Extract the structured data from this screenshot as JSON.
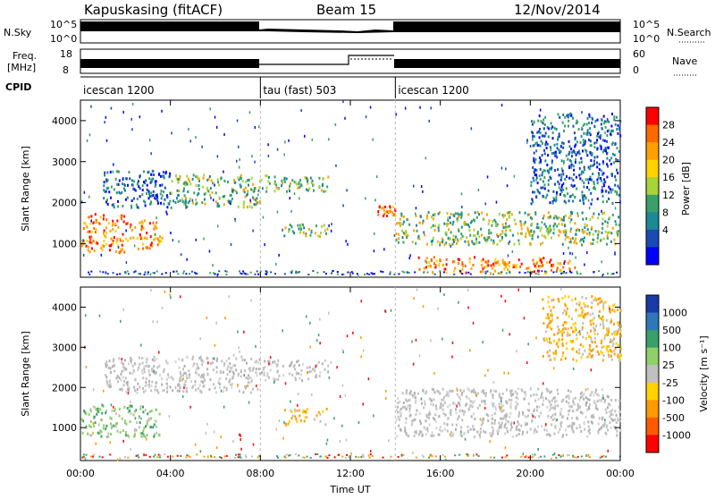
{
  "header": {
    "station": "Kapuskasing (fitACF)",
    "beam": "Beam 15",
    "date": "12/Nov/2014"
  },
  "noise_panel": {
    "left_label": "N.Sky",
    "left_ticks": [
      "10^5",
      "10^0"
    ],
    "right_label": "N.Search",
    "right_ticks": [
      "10^5",
      "10^0"
    ]
  },
  "freq_panel": {
    "left_label_1": "Freq.",
    "left_label_2": "[MHz]",
    "left_ticks": [
      "18",
      "8"
    ],
    "right_label": "Nave",
    "right_ticks": [
      "60",
      "0"
    ]
  },
  "cpid": {
    "label": "CPID",
    "segments": [
      {
        "name": "icescan 1200",
        "start_hour": 0,
        "end_hour": 8
      },
      {
        "name": "tau (fast) 503",
        "start_hour": 8,
        "end_hour": 14
      },
      {
        "name": "icescan 1200",
        "start_hour": 14,
        "end_hour": 24
      }
    ]
  },
  "chart_data": [
    {
      "type": "heatmap",
      "parameter": "Power",
      "xlabel": "",
      "ylabel": "Slant Range [km]",
      "xlim": [
        0,
        24
      ],
      "ylim": [
        180,
        4500
      ],
      "y_ticks": [
        1000,
        2000,
        3000,
        4000
      ],
      "colorbar_label": "Power [dB]",
      "colorbar_ticks": [
        "28",
        "24",
        "20",
        "16",
        "12",
        "8",
        "4"
      ],
      "colorbar_colors": [
        "#ff0000",
        "#ff6a00",
        "#ffa000",
        "#ffd200",
        "#a6d43a",
        "#3aa06a",
        "#1a8a96",
        "#1a4ab4",
        "#0000ff"
      ],
      "regions": [
        {
          "x": [
            0.0,
            2.0
          ],
          "y": [
            800,
            1750
          ],
          "level": "high"
        },
        {
          "x": [
            2.0,
            3.6
          ],
          "y": [
            900,
            1600
          ],
          "level": "high"
        },
        {
          "x": [
            1.0,
            4.0
          ],
          "y": [
            1900,
            2800
          ],
          "level": "low"
        },
        {
          "x": [
            4.0,
            8.0
          ],
          "y": [
            1900,
            2700
          ],
          "level": "medium"
        },
        {
          "x": [
            8.0,
            11.0
          ],
          "y": [
            2300,
            2700
          ],
          "level": "medium"
        },
        {
          "x": [
            9.0,
            11.0
          ],
          "y": [
            1200,
            1500
          ],
          "level": "medium"
        },
        {
          "x": [
            13.2,
            14.0
          ],
          "y": [
            1700,
            1950
          ],
          "level": "high"
        },
        {
          "x": [
            14.0,
            24.0
          ],
          "y": [
            1000,
            1800
          ],
          "level": "medium"
        },
        {
          "x": [
            15.0,
            22.0
          ],
          "y": [
            300,
            700
          ],
          "level": "high"
        },
        {
          "x": [
            20.0,
            24.0
          ],
          "y": [
            2000,
            4200
          ],
          "level": "low"
        }
      ]
    },
    {
      "type": "heatmap",
      "parameter": "Velocity",
      "xlabel": "Time UT",
      "ylabel": "Slant Range [km]",
      "xlim": [
        0,
        24
      ],
      "ylim": [
        180,
        4500
      ],
      "x_ticks": [
        "00:00",
        "04:00",
        "08:00",
        "12:00",
        "16:00",
        "20:00",
        "00:00"
      ],
      "y_ticks": [
        1000,
        2000,
        3000,
        4000
      ],
      "colorbar_label": "Velocity [m s⁻¹]",
      "colorbar_ticks": [
        "1000",
        "500",
        "100",
        "25",
        "-25",
        "-100",
        "-500",
        "-1000"
      ],
      "colorbar_colors": [
        "#1a3aa8",
        "#2f77b8",
        "#3aa06a",
        "#8fd06a",
        "#c0c0c0",
        "#ffd200",
        "#ff9a00",
        "#ff5a00",
        "#ff0000"
      ],
      "regions": [
        {
          "x": [
            0.0,
            3.5
          ],
          "y": [
            800,
            1600
          ],
          "level": "green"
        },
        {
          "x": [
            1.0,
            8.0
          ],
          "y": [
            1900,
            2800
          ],
          "level": "gray"
        },
        {
          "x": [
            8.0,
            11.0
          ],
          "y": [
            2200,
            2700
          ],
          "level": "gray"
        },
        {
          "x": [
            9.0,
            11.0
          ],
          "y": [
            1100,
            1500
          ],
          "level": "orange"
        },
        {
          "x": [
            14.0,
            24.0
          ],
          "y": [
            800,
            2000
          ],
          "level": "gray"
        },
        {
          "x": [
            20.5,
            24.0
          ],
          "y": [
            2700,
            4300
          ],
          "level": "orange"
        }
      ]
    }
  ]
}
